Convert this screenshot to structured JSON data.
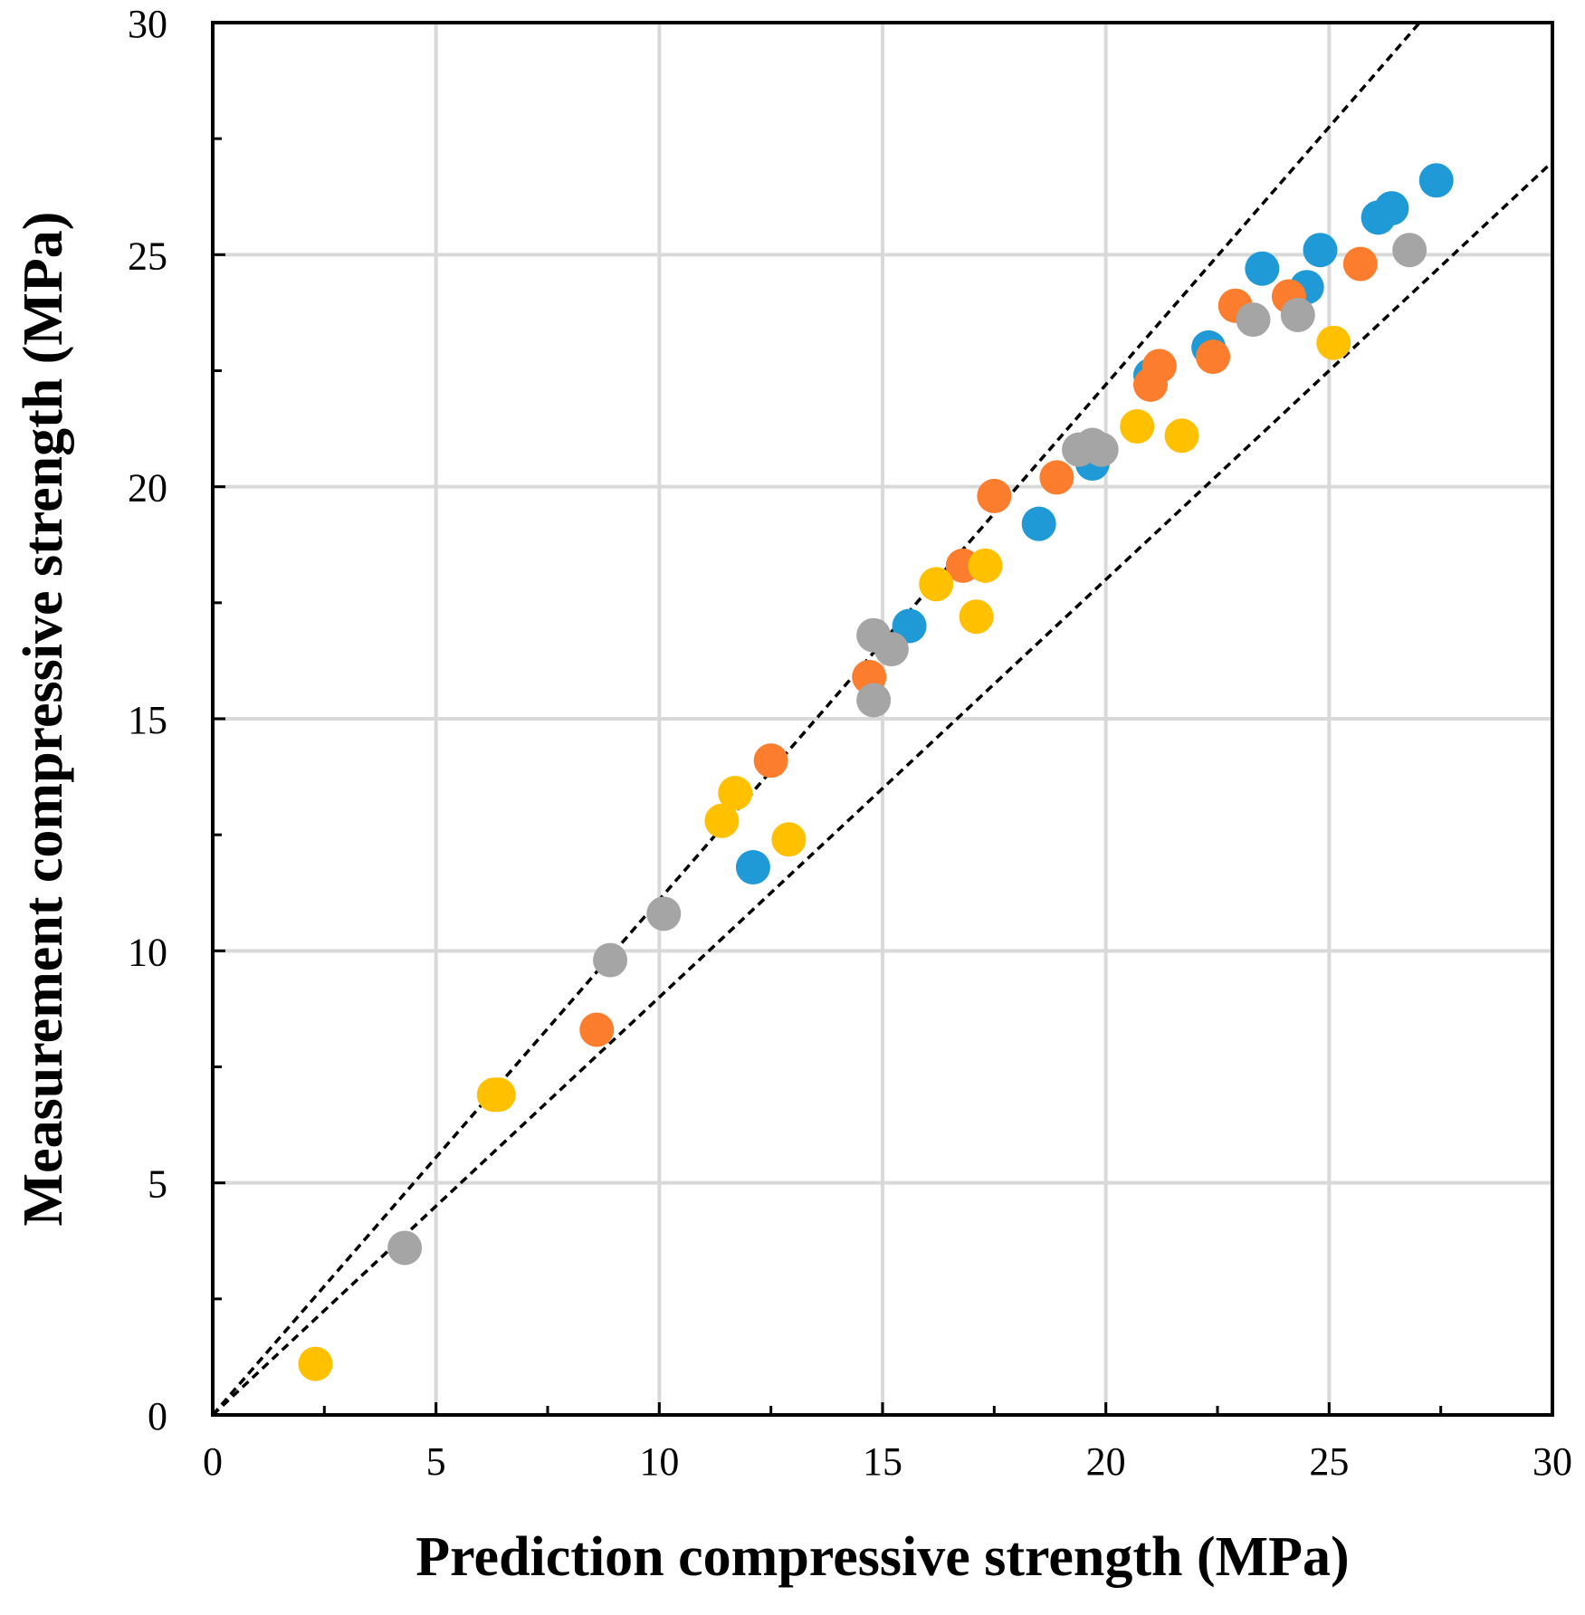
{
  "chart_data": {
    "type": "scatter",
    "title": "",
    "xlabel": "Prediction  compressive strength (MPa)",
    "ylabel": "Measurement compressive strength (MPa)",
    "xlim": [
      0,
      30
    ],
    "ylim": [
      0,
      30
    ],
    "major_ticks": [
      0,
      5,
      10,
      15,
      20,
      25,
      30
    ],
    "tick_labels": [
      "0",
      "5",
      "10",
      "15",
      "20",
      "25",
      "30"
    ],
    "minor_ticks": [
      2.5,
      7.5,
      12.5,
      17.5,
      22.5,
      27.5
    ],
    "grid": true,
    "reference_lines": [
      {
        "name": "upper-bound",
        "points": [
          [
            0,
            0
          ],
          [
            30,
            33.3
          ]
        ]
      },
      {
        "name": "lower-bound",
        "points": [
          [
            0,
            0
          ],
          [
            30,
            27
          ]
        ]
      }
    ],
    "series": [
      {
        "name": "blue",
        "color": "#1f9ad6",
        "points": [
          [
            12.1,
            11.8
          ],
          [
            15.6,
            17.0
          ],
          [
            18.5,
            19.2
          ],
          [
            19.7,
            20.5
          ],
          [
            21.0,
            22.4
          ],
          [
            22.3,
            23.0
          ],
          [
            23.5,
            24.7
          ],
          [
            24.5,
            24.3
          ],
          [
            24.8,
            25.1
          ],
          [
            26.1,
            25.8
          ],
          [
            26.4,
            26.0
          ],
          [
            27.4,
            26.6
          ]
        ]
      },
      {
        "name": "orange",
        "color": "#fb7d2d",
        "points": [
          [
            8.6,
            8.3
          ],
          [
            12.5,
            14.1
          ],
          [
            14.7,
            15.9
          ],
          [
            16.8,
            18.3
          ],
          [
            17.5,
            19.8
          ],
          [
            18.9,
            20.2
          ],
          [
            21.0,
            22.2
          ],
          [
            21.2,
            22.6
          ],
          [
            22.4,
            22.8
          ],
          [
            22.9,
            23.9
          ],
          [
            24.1,
            24.1
          ],
          [
            25.7,
            24.8
          ]
        ]
      },
      {
        "name": "gray",
        "color": "#a5a5a5",
        "points": [
          [
            4.3,
            3.6
          ],
          [
            8.9,
            9.8
          ],
          [
            10.1,
            10.8
          ],
          [
            14.8,
            16.8
          ],
          [
            14.8,
            15.4
          ],
          [
            15.2,
            16.5
          ],
          [
            19.4,
            20.8
          ],
          [
            19.7,
            20.9
          ],
          [
            19.9,
            20.8
          ],
          [
            23.3,
            23.6
          ],
          [
            24.3,
            23.7
          ],
          [
            26.8,
            25.1
          ]
        ]
      },
      {
        "name": "yellow",
        "color": "#ffc000",
        "points": [
          [
            2.3,
            1.1
          ],
          [
            6.3,
            6.9
          ],
          [
            6.4,
            6.9
          ],
          [
            11.4,
            12.8
          ],
          [
            11.7,
            13.4
          ],
          [
            12.9,
            12.4
          ],
          [
            16.2,
            17.9
          ],
          [
            17.1,
            17.2
          ],
          [
            17.3,
            18.3
          ],
          [
            20.7,
            21.3
          ],
          [
            21.7,
            21.1
          ],
          [
            25.1,
            23.1
          ]
        ]
      }
    ]
  }
}
